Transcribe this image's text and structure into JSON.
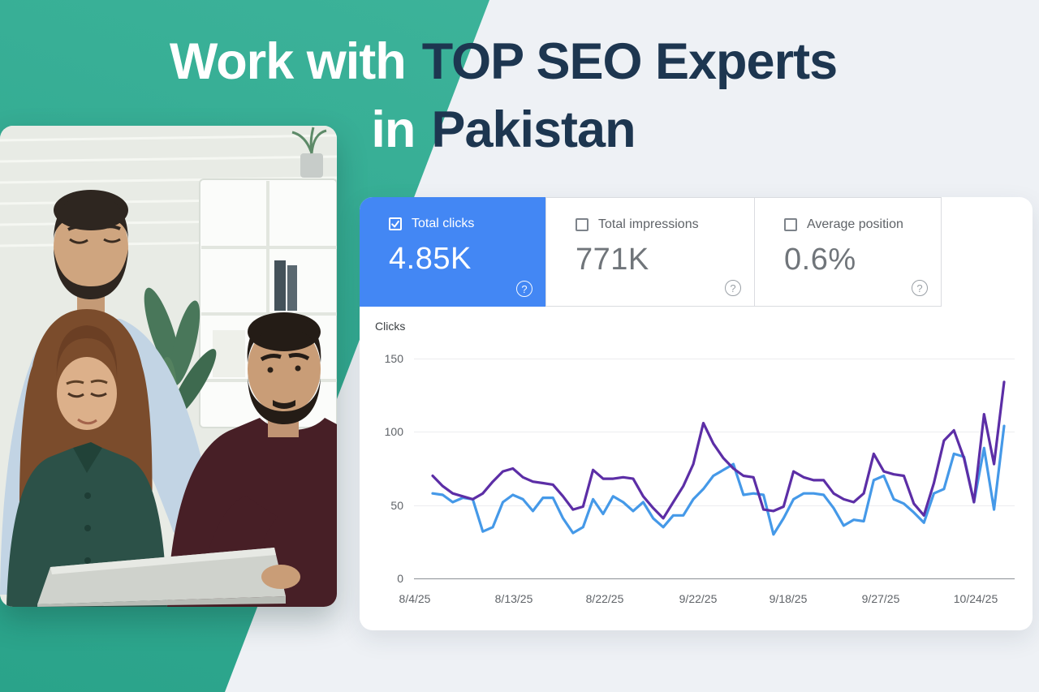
{
  "title": {
    "l1_light": "Work with",
    "l1_dark": "TOP SEO Experts",
    "l2_light": "in",
    "l2_dark": "Pakistan"
  },
  "colors": {
    "teal_top": "#40b69d",
    "teal_bottom": "#2aa38a",
    "navy": "#1d3650",
    "page_bg": "#eef1f5",
    "selected_card_blue": "#4387f4",
    "card_border": "#dadce0",
    "muted_text": "#5f6368",
    "value_gray": "#70757a",
    "line_purple": "#5c2ea6",
    "line_blue": "#4599e8"
  },
  "photo": {
    "scene": "three-seo-specialists-reviewing-laptop-in-office"
  },
  "panel": {
    "cards": [
      {
        "label": "Total clicks",
        "value": "4.85K",
        "checked": true,
        "help": "?"
      },
      {
        "label": "Total impressions",
        "value": "771K",
        "checked": false,
        "help": "?"
      },
      {
        "label": "Average position",
        "value": "0.6%",
        "checked": false,
        "help": "?"
      }
    ]
  },
  "chart_data": {
    "type": "line",
    "title": "",
    "ylabel": "Clicks",
    "xlabel": "",
    "ylim": [
      0,
      150
    ],
    "yticks": [
      150,
      100,
      50,
      0
    ],
    "x_labels": [
      "8/4/25",
      "8/13/25",
      "8/22/25",
      "9/22/25",
      "9/18/25",
      "9/27/25",
      "10/24/25"
    ],
    "grid": "horizontal",
    "legend": "none",
    "series": [
      {
        "name": "clicks-secondary-blue",
        "color": "#4599e8",
        "values": [
          58,
          57,
          52,
          55,
          54,
          32,
          35,
          52,
          57,
          54,
          46,
          55,
          55,
          41,
          31,
          35,
          54,
          44,
          56,
          52,
          46,
          52,
          41,
          35,
          43,
          43,
          54,
          61,
          70,
          74,
          78,
          57,
          58,
          57,
          30,
          41,
          54,
          58,
          58,
          57,
          48,
          36,
          40,
          39,
          67,
          70,
          54,
          51,
          45,
          38,
          58,
          61,
          85,
          83,
          52,
          89,
          47,
          104
        ]
      },
      {
        "name": "clicks-primary-purple",
        "color": "#5c2ea6",
        "values": [
          70,
          63,
          58,
          56,
          54,
          58,
          66,
          73,
          75,
          69,
          66,
          65,
          64,
          56,
          47,
          49,
          74,
          68,
          68,
          69,
          68,
          56,
          48,
          41,
          52,
          63,
          78,
          106,
          92,
          82,
          75,
          70,
          69,
          47,
          46,
          49,
          73,
          69,
          67,
          67,
          58,
          54,
          52,
          58,
          85,
          73,
          71,
          70,
          51,
          43,
          65,
          94,
          101,
          82,
          52,
          112,
          78,
          134
        ]
      }
    ]
  }
}
